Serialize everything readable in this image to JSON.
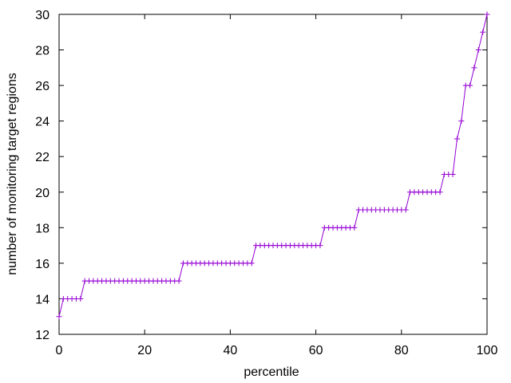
{
  "chart_data": {
    "type": "line",
    "title": "",
    "xlabel": "percentile",
    "ylabel": "number of monitoring target regions",
    "xlim": [
      0,
      100
    ],
    "ylim": [
      12,
      30
    ],
    "xticks": [
      "0",
      "20",
      "40",
      "60",
      "80",
      "100"
    ],
    "yticks": [
      "12",
      "14",
      "16",
      "18",
      "20",
      "22",
      "24",
      "26",
      "28",
      "30"
    ],
    "grid": false,
    "legend": "none",
    "series": [
      {
        "color": "#9400d3",
        "marker": "plus",
        "x": [
          0,
          1,
          2,
          3,
          4,
          5,
          6,
          7,
          8,
          9,
          10,
          11,
          12,
          13,
          14,
          15,
          16,
          17,
          18,
          19,
          20,
          21,
          22,
          23,
          24,
          25,
          26,
          27,
          28,
          29,
          30,
          31,
          32,
          33,
          34,
          35,
          36,
          37,
          38,
          39,
          40,
          41,
          42,
          43,
          44,
          45,
          46,
          47,
          48,
          49,
          50,
          51,
          52,
          53,
          54,
          55,
          56,
          57,
          58,
          59,
          60,
          61,
          62,
          63,
          64,
          65,
          66,
          67,
          68,
          69,
          70,
          71,
          72,
          73,
          74,
          75,
          76,
          77,
          78,
          79,
          80,
          81,
          82,
          83,
          84,
          85,
          86,
          87,
          88,
          89,
          90,
          91,
          92,
          93,
          94,
          95,
          96,
          97,
          98,
          99,
          100
        ],
        "y": [
          13,
          14,
          14,
          14,
          14,
          14,
          15,
          15,
          15,
          15,
          15,
          15,
          15,
          15,
          15,
          15,
          15,
          15,
          15,
          15,
          15,
          15,
          15,
          15,
          15,
          15,
          15,
          15,
          15,
          16,
          16,
          16,
          16,
          16,
          16,
          16,
          16,
          16,
          16,
          16,
          16,
          16,
          16,
          16,
          16,
          16,
          17,
          17,
          17,
          17,
          17,
          17,
          17,
          17,
          17,
          17,
          17,
          17,
          17,
          17,
          17,
          17,
          18,
          18,
          18,
          18,
          18,
          18,
          18,
          18,
          19,
          19,
          19,
          19,
          19,
          19,
          19,
          19,
          19,
          19,
          19,
          19,
          20,
          20,
          20,
          20,
          20,
          20,
          20,
          20,
          21,
          21,
          21,
          23,
          24,
          26,
          26,
          27,
          28,
          29,
          30
        ]
      }
    ]
  }
}
